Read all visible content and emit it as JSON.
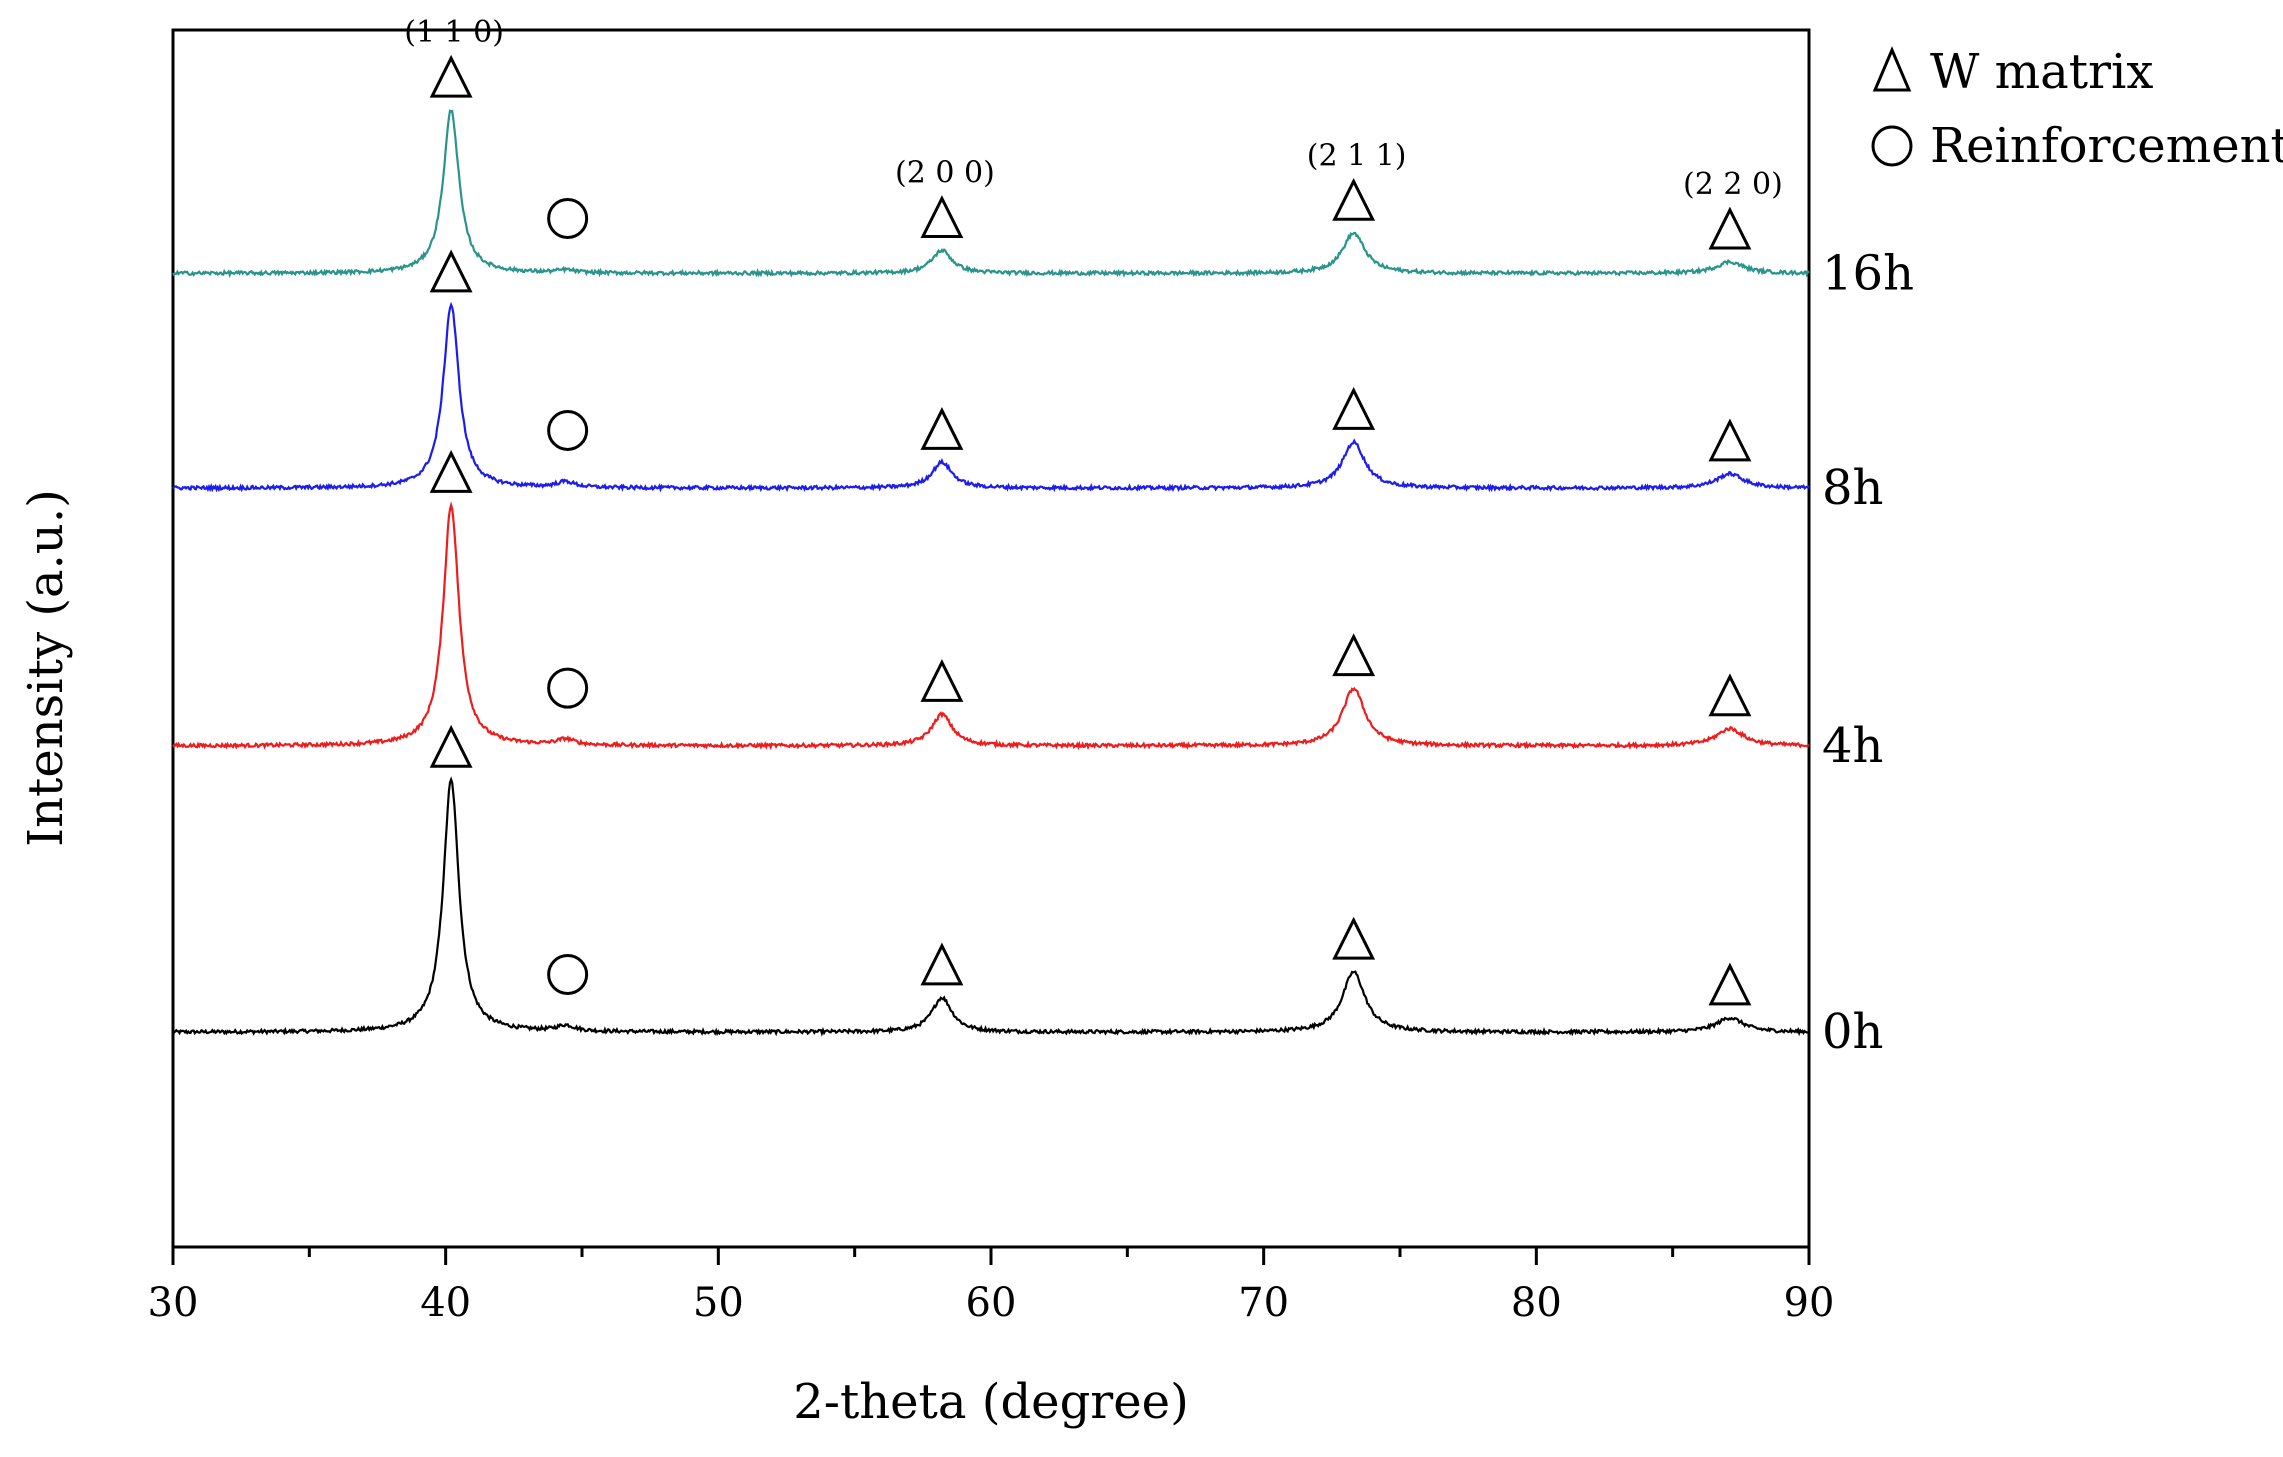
{
  "chart_data": {
    "type": "line",
    "title": "",
    "xlabel": "2-theta (degree)",
    "ylabel": "Intensity (a.u.)",
    "xlim": [
      30,
      90
    ],
    "xticks": [
      30,
      40,
      50,
      60,
      70,
      80,
      90
    ],
    "xtick_labels": [
      "30",
      "40",
      "50",
      "60",
      "70",
      "80",
      "90"
    ],
    "ylim": [
      -0.75,
      3.5
    ],
    "grid": false,
    "legend_position": "top-right, outside plot",
    "legend": [
      {
        "marker": "triangle",
        "label": "W matrix"
      },
      {
        "marker": "circle",
        "label": "Reinforcement"
      }
    ],
    "series": [
      {
        "name": "0h",
        "label": "0h",
        "color": "#000000",
        "baseline": 0.0,
        "peaks": [
          {
            "x": 40.2,
            "height": 0.88,
            "width": 0.35
          },
          {
            "x": 44.4,
            "height": 0.02,
            "width": 0.4
          },
          {
            "x": 58.2,
            "height": 0.12,
            "width": 0.45
          },
          {
            "x": 73.3,
            "height": 0.21,
            "width": 0.5
          },
          {
            "x": 87.1,
            "height": 0.05,
            "width": 0.6
          }
        ]
      },
      {
        "name": "4h",
        "label": "4h",
        "color": "#ee1c1c",
        "baseline": 1.0,
        "peaks": [
          {
            "x": 40.2,
            "height": 0.84,
            "width": 0.35
          },
          {
            "x": 44.4,
            "height": 0.02,
            "width": 0.4
          },
          {
            "x": 58.2,
            "height": 0.11,
            "width": 0.45
          },
          {
            "x": 73.3,
            "height": 0.2,
            "width": 0.5
          },
          {
            "x": 87.1,
            "height": 0.06,
            "width": 0.6
          }
        ]
      },
      {
        "name": "8h",
        "label": "8h",
        "color": "#1c1cee",
        "baseline": 1.9,
        "peaks": [
          {
            "x": 40.2,
            "height": 0.64,
            "width": 0.35
          },
          {
            "x": 44.4,
            "height": 0.02,
            "width": 0.4
          },
          {
            "x": 58.2,
            "height": 0.09,
            "width": 0.45
          },
          {
            "x": 73.3,
            "height": 0.16,
            "width": 0.5
          },
          {
            "x": 87.1,
            "height": 0.05,
            "width": 0.6
          }
        ]
      },
      {
        "name": "16h",
        "label": "16h",
        "color": "#2a948c",
        "baseline": 2.65,
        "peaks": [
          {
            "x": 40.2,
            "height": 0.57,
            "width": 0.35
          },
          {
            "x": 44.4,
            "height": 0.01,
            "width": 0.4
          },
          {
            "x": 58.2,
            "height": 0.08,
            "width": 0.45
          },
          {
            "x": 73.3,
            "height": 0.14,
            "width": 0.5
          },
          {
            "x": 87.1,
            "height": 0.04,
            "width": 0.6
          }
        ]
      }
    ],
    "hkl_annotations": [
      {
        "x": 40.2,
        "label": "(1 1 0)"
      },
      {
        "x": 58.2,
        "label": "(2 0 0)"
      },
      {
        "x": 73.3,
        "label": "(2 1 1)"
      },
      {
        "x": 87.1,
        "label": "(2 2 0)"
      }
    ]
  }
}
